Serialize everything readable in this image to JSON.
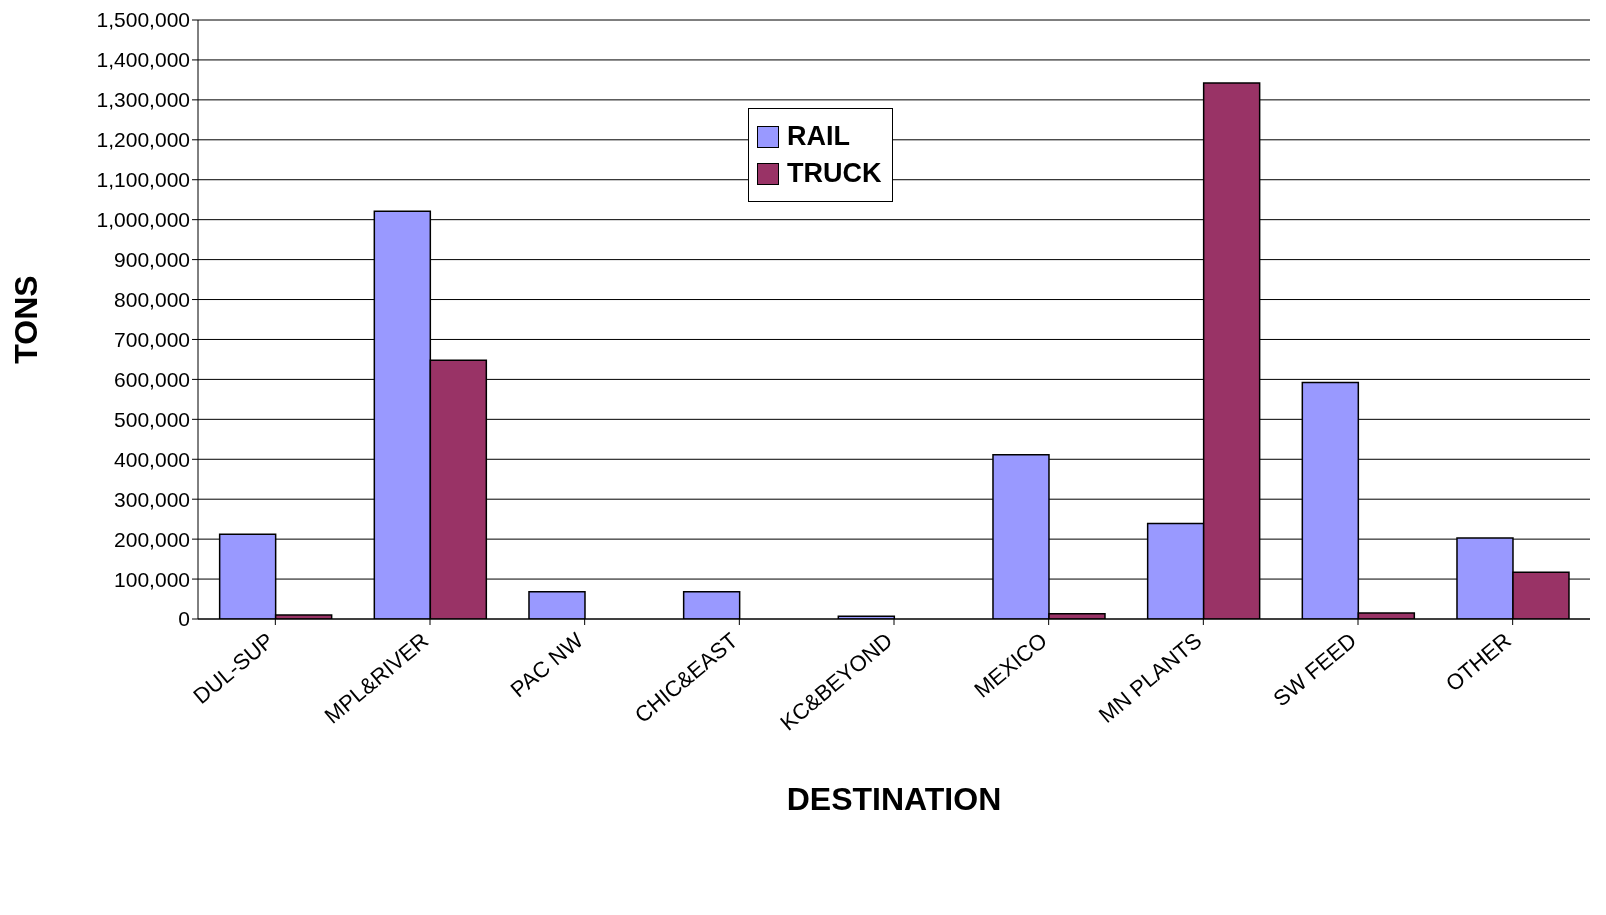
{
  "chart_data": {
    "type": "bar",
    "xlabel": "DESTINATION",
    "ylabel": "TONS",
    "categories": [
      "DUL-SUP",
      "MPL&RIVER",
      "PAC NW",
      "CHIC&EAST",
      "KC&BEYOND",
      "MEXICO",
      "MN PLANTS",
      "SW FEED",
      "OTHER"
    ],
    "series": [
      {
        "name": "RAIL",
        "color": "#9999ff",
        "values": [
          212000,
          1021000,
          68000,
          68000,
          7000,
          411000,
          239000,
          592000,
          203000
        ]
      },
      {
        "name": "TRUCK",
        "color": "#993366",
        "values": [
          10000,
          648000,
          0,
          0,
          0,
          13000,
          1342000,
          15000,
          117000
        ]
      }
    ],
    "ylim": [
      0,
      1500000
    ],
    "yticks": [
      0,
      {
        "value": 100000,
        "label": "100,000"
      },
      {
        "value": 200000,
        "label": "200,000"
      },
      {
        "value": 300000,
        "label": "300,000"
      },
      {
        "value": 400000,
        "label": "400,000"
      },
      {
        "value": 500000,
        "label": "500,000"
      },
      {
        "value": 600000,
        "label": "600,000"
      },
      {
        "value": 700000,
        "label": "700,000"
      },
      {
        "value": 800000,
        "label": "800,000"
      },
      {
        "value": 900000,
        "label": "900,000"
      },
      {
        "value": 1000000,
        "label": "1,000,000"
      },
      {
        "value": 1100000,
        "label": "1,100,000"
      },
      {
        "value": 1200000,
        "label": "1,200,000"
      },
      {
        "value": 1300000,
        "label": "1,300,000"
      },
      {
        "value": 1400000,
        "label": "1,400,000"
      },
      {
        "value": 1500000,
        "label": "1,500,000"
      }
    ],
    "grid": "y",
    "legend": "top"
  }
}
